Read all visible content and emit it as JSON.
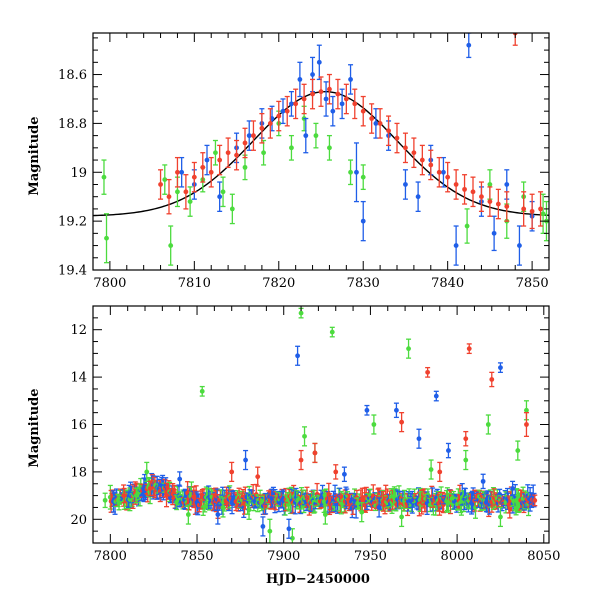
{
  "colors": {
    "green": "#4cdb3e",
    "blue": "#1f5ee8",
    "red": "#f0412e",
    "model": "#000000"
  },
  "chart_data": [
    {
      "type": "scatter",
      "title": "",
      "xlabel": "",
      "ylabel": "Magnitude",
      "xlim": [
        7798,
        7852
      ],
      "ylim": [
        19.4,
        18.43
      ],
      "y_inverted": true,
      "x_ticks": [
        7800,
        7810,
        7820,
        7830,
        7840,
        7850
      ],
      "x_tick_labels": [
        "7800",
        "7810",
        "7820",
        "7830",
        "7840",
        "7850"
      ],
      "y_ticks": [
        18.6,
        18.8,
        19,
        19.2,
        19.4
      ],
      "y_tick_labels": [
        "18.6",
        "18.8",
        "19",
        "19.2",
        "19.4"
      ],
      "grid": false,
      "model_curve": {
        "shape": "gaussian",
        "peak_x": 7825.5,
        "peak_mag": 18.67,
        "baseline_mag": 19.18,
        "sigma": 8.5
      },
      "series": [
        {
          "color": "green",
          "x": [
            7799.3,
            7799.6,
            7806.5,
            7807.2,
            7808.0,
            7809.5,
            7811.0,
            7812.5,
            7813.4,
            7814.5,
            7816.0,
            7818.2,
            7820.0,
            7821.5,
            7823.0,
            7824.4,
            7826.0,
            7828.5,
            7830.0,
            7842.3,
            7845.0,
            7847.0,
            7849.0,
            7851.3,
            7851.7
          ],
          "y": [
            19.02,
            19.27,
            19.03,
            19.3,
            19.08,
            19.12,
            19.03,
            18.92,
            19.08,
            19.15,
            18.98,
            18.92,
            18.8,
            18.9,
            18.78,
            18.85,
            18.9,
            19.0,
            19.02,
            19.22,
            19.05,
            19.2,
            19.1,
            19.17,
            19.2
          ],
          "err": [
            0.07,
            0.1,
            0.06,
            0.08,
            0.06,
            0.06,
            0.05,
            0.05,
            0.06,
            0.06,
            0.05,
            0.05,
            0.05,
            0.05,
            0.05,
            0.05,
            0.05,
            0.05,
            0.05,
            0.07,
            0.06,
            0.07,
            0.06,
            0.08,
            0.08
          ]
        },
        {
          "color": "blue",
          "x": [
            7808.5,
            7810.0,
            7811.5,
            7813.0,
            7815.0,
            7816.5,
            7818.0,
            7819.2,
            7820.5,
            7821.5,
            7822.5,
            7823.2,
            7824.0,
            7824.8,
            7825.6,
            7826.4,
            7827.5,
            7828.5,
            7829.2,
            7830.0,
            7831.5,
            7833.0,
            7835.0,
            7836.5,
            7838.0,
            7839.5,
            7841.0,
            7842.5,
            7844.0,
            7845.5,
            7847.0,
            7848.5,
            7850.0
          ],
          "y": [
            19.0,
            19.05,
            18.95,
            19.1,
            18.9,
            18.85,
            18.8,
            18.78,
            18.75,
            18.72,
            18.62,
            18.85,
            18.6,
            18.55,
            18.7,
            18.75,
            18.72,
            18.62,
            19.0,
            19.2,
            18.8,
            18.85,
            19.05,
            19.1,
            18.95,
            19.0,
            19.3,
            18.48,
            19.12,
            19.25,
            19.05,
            19.3,
            19.18
          ],
          "err": [
            0.06,
            0.06,
            0.06,
            0.06,
            0.06,
            0.06,
            0.06,
            0.05,
            0.05,
            0.05,
            0.07,
            0.07,
            0.07,
            0.07,
            0.07,
            0.06,
            0.06,
            0.06,
            0.12,
            0.08,
            0.06,
            0.06,
            0.06,
            0.06,
            0.06,
            0.06,
            0.08,
            0.05,
            0.06,
            0.07,
            0.06,
            0.08,
            0.06
          ]
        },
        {
          "color": "red",
          "x": [
            7806.0,
            7807.0,
            7808.0,
            7809.0,
            7810.0,
            7811.0,
            7812.0,
            7813.0,
            7814.0,
            7815.0,
            7816.0,
            7817.0,
            7818.0,
            7819.0,
            7820.0,
            7821.0,
            7822.0,
            7823.0,
            7824.0,
            7825.0,
            7826.0,
            7827.0,
            7828.0,
            7829.0,
            7830.0,
            7831.0,
            7832.0,
            7833.0,
            7834.0,
            7835.0,
            7836.0,
            7837.0,
            7838.0,
            7839.0,
            7840.0,
            7841.0,
            7842.0,
            7843.0,
            7844.0,
            7845.0,
            7846.0,
            7847.0,
            7848.0,
            7849.0,
            7850.0,
            7851.0
          ],
          "y": [
            19.05,
            19.1,
            19.0,
            19.08,
            19.02,
            18.98,
            19.0,
            18.95,
            18.92,
            18.93,
            18.88,
            18.85,
            18.82,
            18.8,
            18.77,
            18.75,
            18.72,
            18.7,
            18.68,
            18.67,
            18.66,
            18.68,
            18.7,
            18.72,
            18.75,
            18.78,
            18.8,
            18.83,
            18.86,
            18.9,
            18.92,
            18.95,
            18.97,
            19.0,
            19.02,
            19.05,
            19.07,
            19.08,
            19.1,
            19.12,
            19.13,
            19.14,
            18.43,
            19.15,
            19.16,
            19.15
          ],
          "err": [
            0.06,
            0.07,
            0.06,
            0.07,
            0.06,
            0.06,
            0.06,
            0.06,
            0.06,
            0.06,
            0.06,
            0.06,
            0.06,
            0.06,
            0.06,
            0.06,
            0.06,
            0.06,
            0.06,
            0.06,
            0.06,
            0.06,
            0.06,
            0.06,
            0.06,
            0.06,
            0.06,
            0.06,
            0.06,
            0.06,
            0.06,
            0.06,
            0.06,
            0.06,
            0.06,
            0.06,
            0.06,
            0.06,
            0.06,
            0.06,
            0.06,
            0.06,
            0.05,
            0.07,
            0.07,
            0.07
          ]
        }
      ]
    },
    {
      "type": "scatter",
      "title": "",
      "xlabel": "HJD−2450000",
      "ylabel": "Magnitude",
      "xlim": [
        7790,
        8053
      ],
      "ylim": [
        21.0,
        11.0
      ],
      "y_inverted": true,
      "x_ticks": [
        7800,
        7850,
        7900,
        7950,
        8000,
        8050
      ],
      "x_tick_labels": [
        "7800",
        "7850",
        "7900",
        "7950",
        "8000",
        "8050"
      ],
      "y_ticks": [
        12,
        14,
        16,
        18,
        20
      ],
      "y_tick_labels": [
        "12",
        "14",
        "16",
        "18",
        "20"
      ],
      "grid": false,
      "series": [
        {
          "color": "green",
          "x": [
            7797,
            7805,
            7815,
            7821,
            7845,
            7853,
            7865,
            7880,
            7892,
            7905,
            7910,
            7912,
            7918,
            7924,
            7928,
            7945,
            7952,
            7968,
            7972,
            7985,
            7995,
            8005,
            8018,
            8025,
            8035,
            8040
          ],
          "y": [
            19.2,
            19.3,
            19.0,
            18.0,
            19.8,
            14.6,
            19.5,
            19.6,
            20.5,
            20.8,
            11.3,
            16.5,
            17.2,
            19.8,
            12.1,
            19.7,
            16.0,
            19.9,
            12.8,
            17.9,
            19.3,
            17.5,
            16.0,
            19.9,
            17.1,
            15.4
          ],
          "err": [
            0.3,
            0.3,
            0.3,
            0.4,
            0.4,
            0.2,
            0.4,
            0.4,
            0.5,
            0.4,
            0.2,
            0.4,
            0.4,
            0.4,
            0.2,
            0.4,
            0.4,
            0.4,
            0.4,
            0.4,
            0.4,
            0.4,
            0.4,
            0.4,
            0.4,
            0.4
          ]
        },
        {
          "color": "blue",
          "x": [
            7840,
            7862,
            7878,
            7888,
            7903,
            7908,
            7935,
            7948,
            7955,
            7965,
            7978,
            7988,
            7995,
            8015,
            8025,
            8032
          ],
          "y": [
            18.3,
            19.8,
            17.5,
            20.3,
            20.4,
            13.1,
            18.1,
            15.4,
            19.5,
            15.4,
            16.6,
            14.8,
            17.1,
            18.4,
            13.6,
            18.7
          ],
          "err": [
            0.3,
            0.4,
            0.4,
            0.4,
            0.4,
            0.4,
            0.3,
            0.2,
            0.4,
            0.3,
            0.4,
            0.2,
            0.3,
            0.3,
            0.2,
            0.3
          ]
        },
        {
          "color": "red",
          "x": [
            7808,
            7823,
            7870,
            7885,
            7910,
            7918,
            7930,
            7968,
            7983,
            7990,
            8005,
            8007,
            8020,
            8040
          ],
          "y": [
            19.0,
            18.7,
            18.0,
            18.2,
            17.5,
            17.2,
            18.0,
            15.9,
            13.8,
            18.0,
            16.6,
            12.8,
            14.1,
            16.0
          ],
          "err": [
            0.3,
            0.3,
            0.4,
            0.4,
            0.4,
            0.4,
            0.3,
            0.4,
            0.2,
            0.4,
            0.3,
            0.2,
            0.3,
            0.5
          ]
        }
      ],
      "baseline_band": {
        "x_range": [
          7800,
          8045
        ],
        "quiescent_mag": 19.2,
        "event": {
          "peak_x": 7825.5,
          "peak_mag": 18.67,
          "sigma": 8.5
        }
      }
    }
  ]
}
